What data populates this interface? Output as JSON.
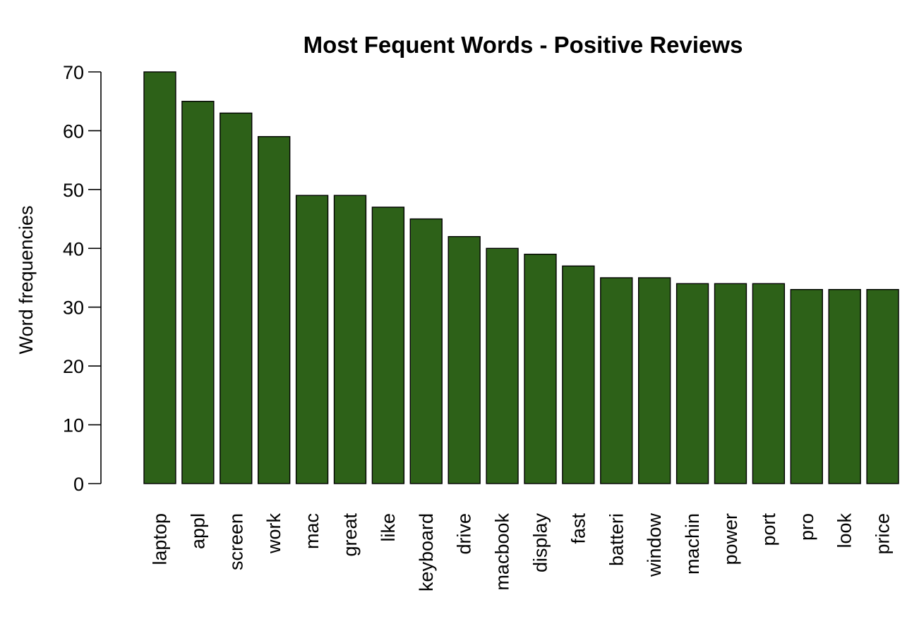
{
  "chart_data": {
    "type": "bar",
    "title": "Most Fequent Words - Positive Reviews",
    "xlabel": "",
    "ylabel": "Word frequencies",
    "categories": [
      "laptop",
      "appl",
      "screen",
      "work",
      "mac",
      "great",
      "like",
      "keyboard",
      "drive",
      "macbook",
      "display",
      "fast",
      "batteri",
      "window",
      "machin",
      "power",
      "port",
      "pro",
      "look",
      "price"
    ],
    "values": [
      70,
      65,
      63,
      59,
      49,
      49,
      47,
      45,
      42,
      40,
      39,
      37,
      35,
      35,
      34,
      34,
      34,
      33,
      33,
      33
    ],
    "ylim": [
      0,
      70
    ],
    "yticks": [
      0,
      10,
      20,
      30,
      40,
      50,
      60,
      70
    ],
    "bar_color": "#2d6118",
    "grid": false,
    "legend": "none"
  }
}
